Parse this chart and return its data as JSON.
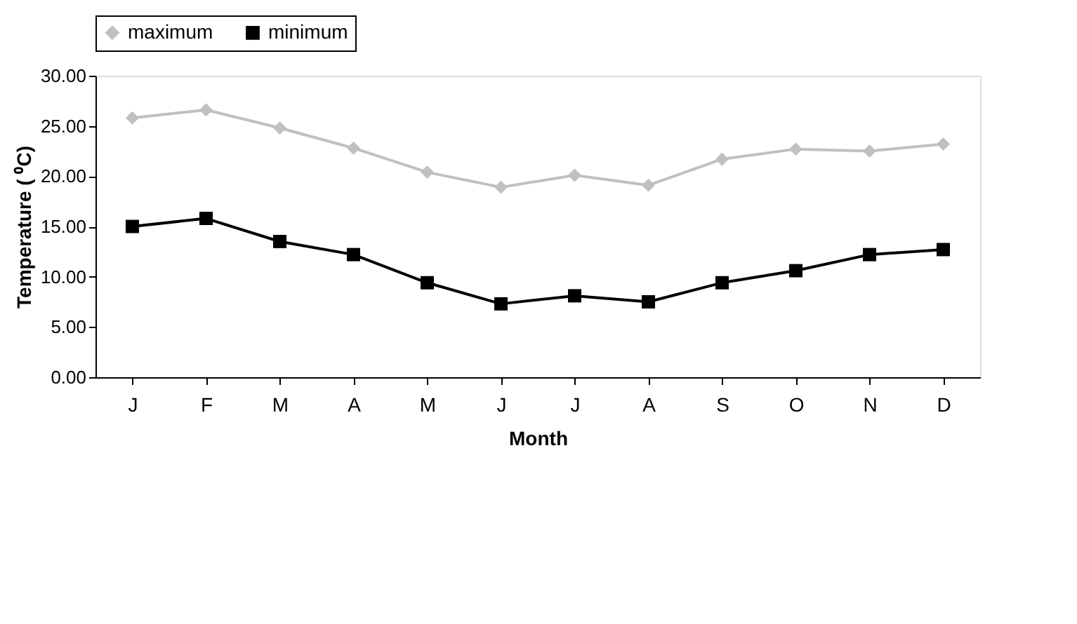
{
  "chart_data": {
    "type": "line",
    "xlabel": "Month",
    "ylabel": "Temperature ( ⁰C)",
    "categories": [
      "J",
      "F",
      "M",
      "A",
      "M",
      "J",
      "J",
      "A",
      "S",
      "O",
      "N",
      "D"
    ],
    "series": [
      {
        "name": "maximum",
        "color": "#c0c0c0",
        "marker": "diamond",
        "values": [
          25.8,
          26.6,
          24.8,
          22.8,
          20.4,
          18.9,
          20.1,
          19.1,
          21.7,
          22.7,
          22.5,
          23.2
        ]
      },
      {
        "name": "minimum",
        "color": "#000000",
        "marker": "square",
        "values": [
          15.0,
          15.8,
          13.5,
          12.2,
          9.4,
          7.3,
          8.1,
          7.5,
          9.4,
          10.6,
          12.2,
          12.7
        ]
      }
    ],
    "ylim": [
      0,
      30
    ],
    "yticks": [
      {
        "value": 0,
        "label": "0.00"
      },
      {
        "value": 5,
        "label": "5.00"
      },
      {
        "value": 10,
        "label": "10.00"
      },
      {
        "value": 15,
        "label": "15.00"
      },
      {
        "value": 20,
        "label": "20.00"
      },
      {
        "value": 25,
        "label": "25.00"
      },
      {
        "value": 30,
        "label": "30.00"
      }
    ],
    "grid": false,
    "legend": "top",
    "line_style": "solid"
  }
}
